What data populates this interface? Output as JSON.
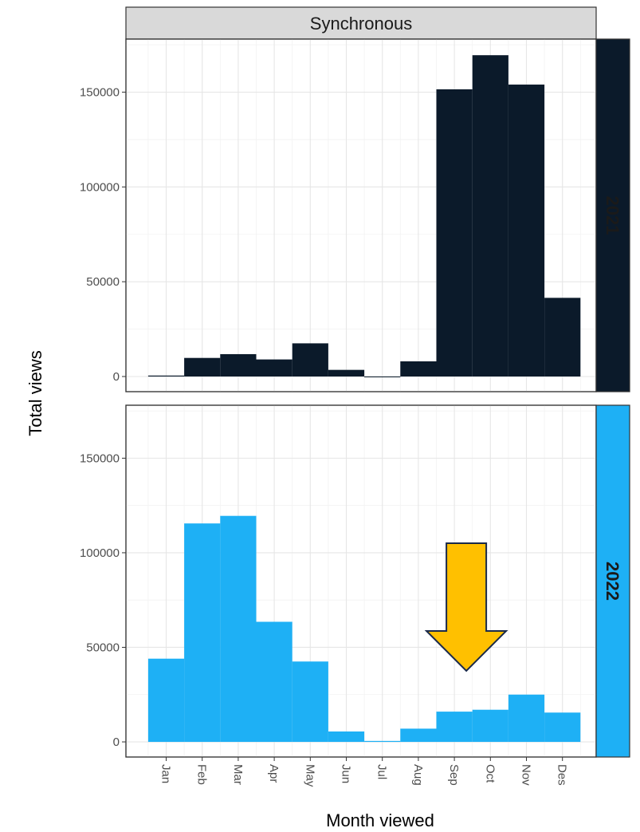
{
  "chart_data": {
    "type": "bar",
    "facet_column_label": "Synchronous",
    "xlabel": "Month viewed",
    "ylabel": "Total views",
    "categories": [
      "Jan",
      "Feb",
      "Mar",
      "Apr",
      "May",
      "Jun",
      "Jul",
      "Aug",
      "Sep",
      "Oct",
      "Nov",
      "Des"
    ],
    "ylim": [
      -8000,
      178000
    ],
    "yticks": [
      0,
      50000,
      100000,
      150000
    ],
    "ytick_labels": [
      "0",
      "50000",
      "100000",
      "150000"
    ],
    "grid": true,
    "panels": [
      {
        "name": "2021",
        "color": "#0b1a2a",
        "strip_color": "#0b1a2a",
        "values": [
          500,
          9800,
          11800,
          9000,
          17500,
          3500,
          0,
          8000,
          151500,
          169500,
          154000,
          41500
        ]
      },
      {
        "name": "2022",
        "color": "#1eb0f5",
        "strip_color": "#1eb0f5",
        "values": [
          44000,
          115500,
          119500,
          63500,
          42500,
          5500,
          500,
          7000,
          16000,
          17000,
          25000,
          15500
        ]
      }
    ],
    "annotation": {
      "type": "arrow-down",
      "color": "#ffc000",
      "stroke": "#1a2a4a",
      "points_to": "Sep",
      "panel": "2022"
    }
  }
}
